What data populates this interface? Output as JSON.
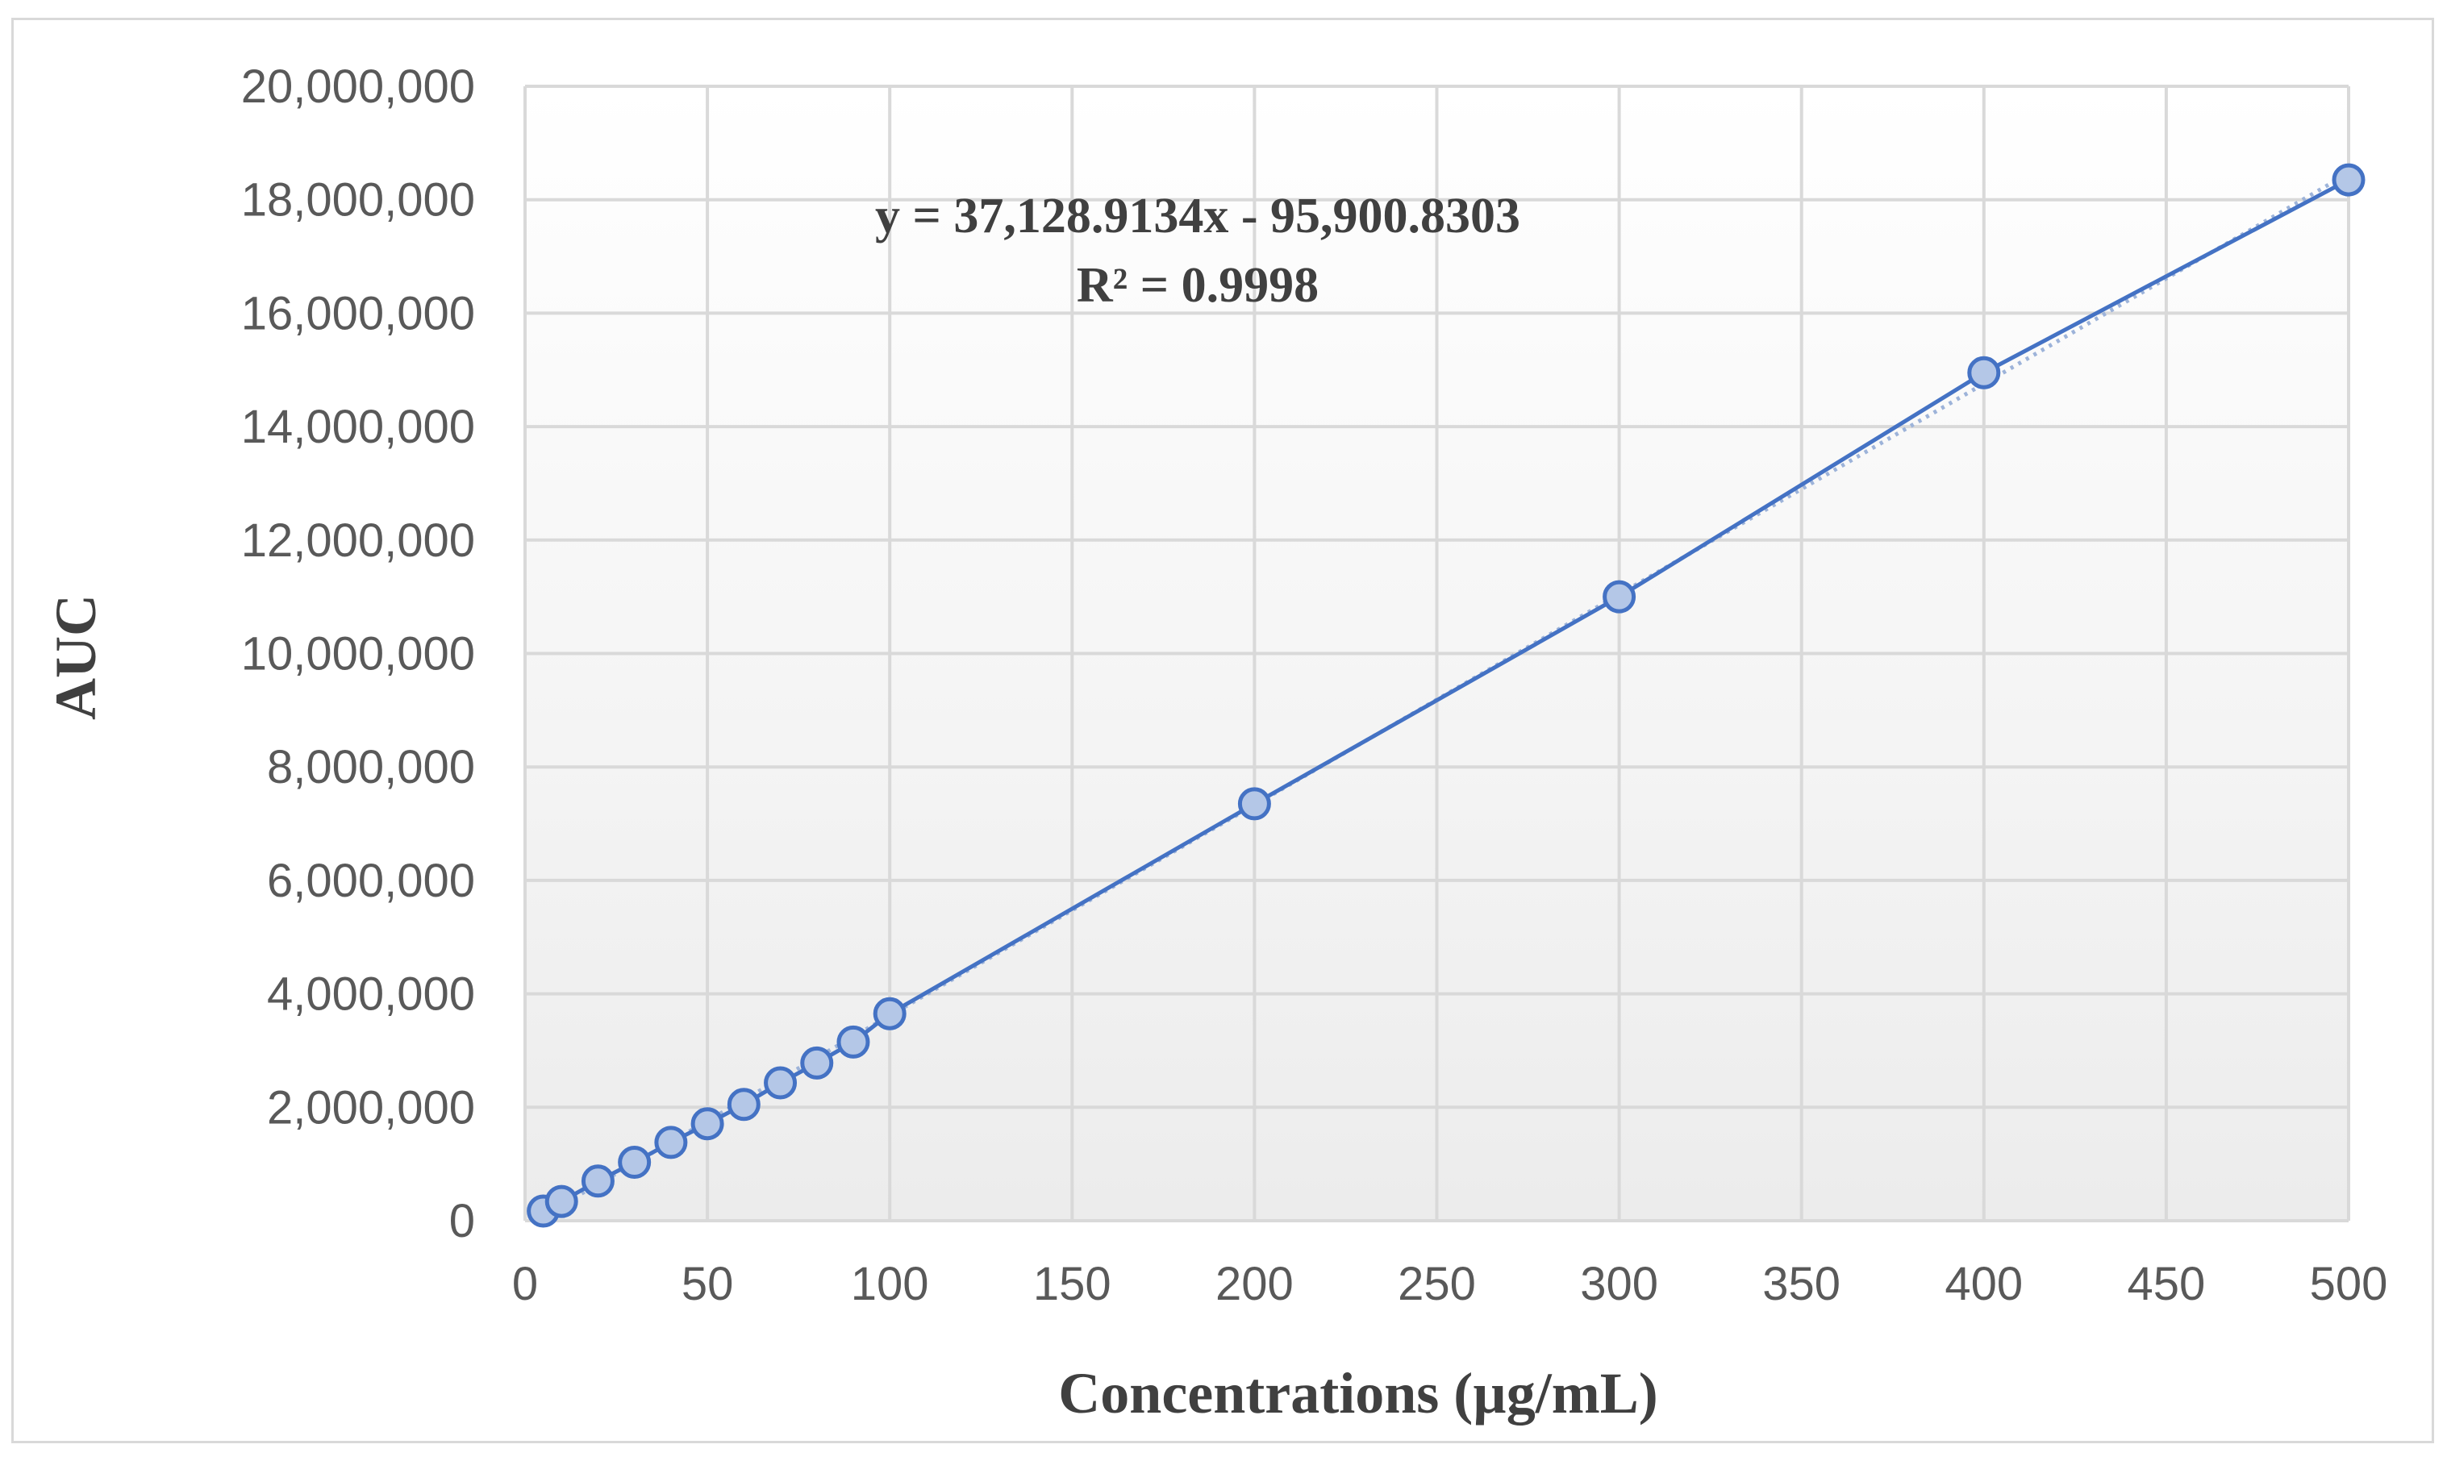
{
  "chart_data": {
    "type": "scatter",
    "title": "",
    "xlabel": "Concentrations (µg/mL)",
    "ylabel": "AUC",
    "xlim": [
      0,
      500
    ],
    "ylim": [
      0,
      20000000
    ],
    "xticks": [
      0,
      50,
      100,
      150,
      200,
      250,
      300,
      350,
      400,
      450,
      500
    ],
    "yticks": [
      0,
      2000000,
      4000000,
      6000000,
      8000000,
      10000000,
      12000000,
      14000000,
      16000000,
      18000000,
      20000000
    ],
    "xtick_labels": [
      "0",
      "50",
      "100",
      "150",
      "200",
      "250",
      "300",
      "350",
      "400",
      "450",
      "500"
    ],
    "ytick_labels": [
      "0",
      "2,000,000",
      "4,000,000",
      "6,000,000",
      "8,000,000",
      "10,000,000",
      "12,000,000",
      "14,000,000",
      "16,000,000",
      "18,000,000",
      "20,000,000"
    ],
    "grid": true,
    "legend": "none",
    "series": [
      {
        "name": "AUC",
        "x": [
          5,
          10,
          20,
          30,
          40,
          50,
          60,
          70,
          80,
          90,
          100,
          200,
          300,
          400,
          500
        ],
        "y": [
          170000,
          340000,
          700000,
          1030000,
          1380000,
          1710000,
          2050000,
          2430000,
          2780000,
          3150000,
          3650000,
          7350000,
          11000000,
          14950000,
          18350000
        ]
      }
    ],
    "trendline": {
      "type": "linear",
      "slope": 37128.9134,
      "intercept": -95900.8303,
      "equation": "y = 37,128.9134x - 95,900.8303",
      "r_squared": "R² = 0.9998"
    },
    "colors": {
      "line": "#4472c4",
      "marker_fill": "#b4c7e7",
      "trendline": "#9db3d9",
      "grid": "#d9d9d9"
    }
  }
}
